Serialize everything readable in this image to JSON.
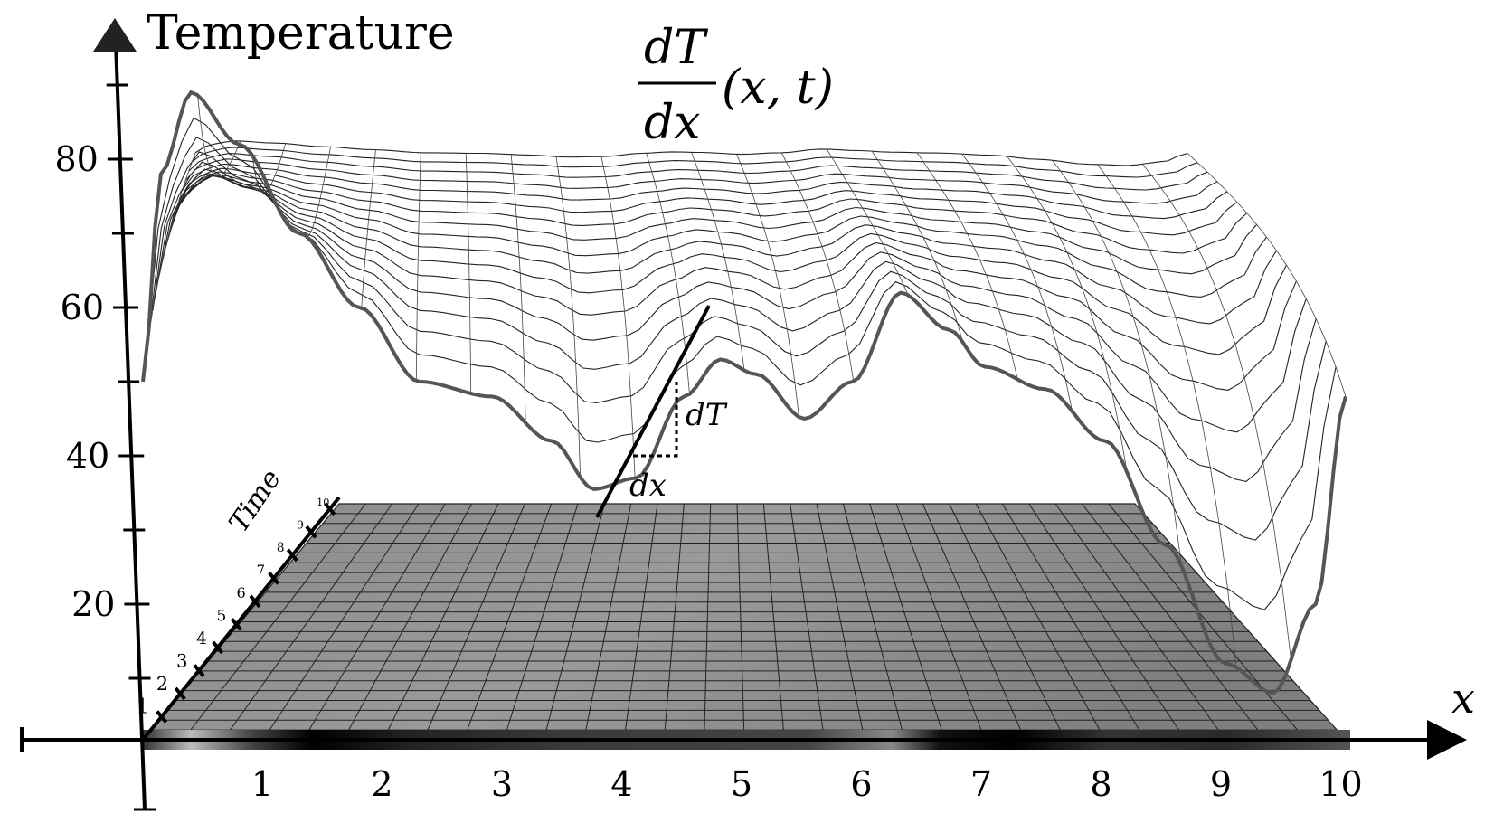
{
  "axis_labels": {
    "vertical": "Temperature",
    "horizontal": "x",
    "depth": "Time"
  },
  "y_ticks": [
    "80",
    "60",
    "40",
    "20"
  ],
  "x_ticks": [
    "1",
    "2",
    "3",
    "4",
    "5",
    "6",
    "7",
    "8",
    "9",
    "10"
  ],
  "time_ticks": [
    "1",
    "2",
    "3",
    "4",
    "5",
    "6",
    "7",
    "8",
    "9",
    "10"
  ],
  "formula": {
    "numerator": "dT",
    "denominator": "dx",
    "args": "(x, t)"
  },
  "tangent": {
    "dT_label": "dT",
    "dx_label": "dx"
  }
}
